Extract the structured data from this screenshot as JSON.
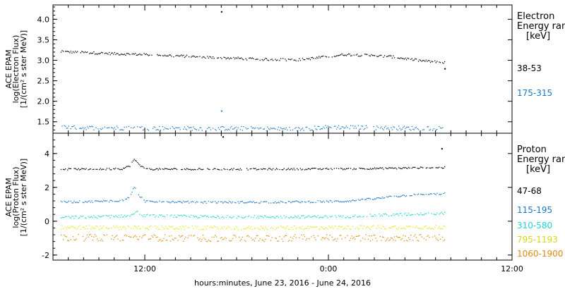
{
  "chart_data": [
    {
      "type": "scatter",
      "panel": "electron",
      "ylabel": [
        "ACE EPAM",
        "log(Electron Flux)",
        "[1/(cm² s ster MeV)]"
      ],
      "xlim": [
        6.0,
        36.0
      ],
      "ylim": [
        1.22,
        4.35
      ],
      "yticks": [
        1.5,
        2.0,
        2.5,
        3.0,
        3.5,
        4.0
      ],
      "ytick_labels": [
        "1.5",
        "2.0",
        "2.5",
        "3.0",
        "3.5",
        "4.0"
      ],
      "legend_title": [
        "Electron",
        "Energy range",
        "[keV]"
      ],
      "series": [
        {
          "name": "38-53",
          "color": "#000000",
          "x": [
            6.5,
            8,
            10,
            12,
            14,
            15,
            16,
            18,
            19,
            20,
            21,
            22,
            24,
            25,
            26,
            28,
            29,
            30,
            31,
            31.6
          ],
          "y": [
            3.22,
            3.2,
            3.17,
            3.15,
            3.12,
            3.1,
            3.08,
            3.06,
            3.04,
            3.03,
            3.03,
            3.02,
            3.1,
            3.15,
            3.14,
            3.1,
            3.05,
            3.0,
            2.97,
            2.95
          ],
          "noise": 0.03,
          "outliers": [
            [
              17.0,
              4.19
            ],
            [
              31.6,
              2.8
            ]
          ]
        },
        {
          "name": "175-315",
          "color": "#1a78c8",
          "x": [
            6.5,
            10,
            14,
            18,
            20,
            22,
            24,
            26,
            28,
            30,
            31.6
          ],
          "y": [
            1.37,
            1.36,
            1.35,
            1.35,
            1.34,
            1.33,
            1.38,
            1.37,
            1.36,
            1.35,
            1.36
          ],
          "noise": 0.05,
          "outliers": [
            [
              17.0,
              1.77
            ]
          ]
        }
      ]
    },
    {
      "type": "scatter",
      "panel": "proton",
      "ylabel": [
        "ACE EPAM",
        "log(Proton Flux)",
        "[1/(cm² s ster MeV)]"
      ],
      "xlabel": "hours:minutes, June 23, 2016 - June 24, 2016",
      "xlim": [
        6.0,
        36.0
      ],
      "ylim": [
        -2.3,
        5.2
      ],
      "yticks": [
        -2,
        0,
        2,
        4
      ],
      "ytick_labels": [
        "-2",
        "0",
        "2",
        "4"
      ],
      "xticks": [
        12,
        24,
        36
      ],
      "xtick_labels": [
        "12:00",
        "0:00",
        "12:00"
      ],
      "legend_title": [
        "Proton",
        "Energy range",
        "[keV]"
      ],
      "series": [
        {
          "name": "47-68",
          "color": "#000000",
          "x": [
            6.5,
            9,
            10.5,
            11,
            11.3,
            11.6,
            12,
            15,
            20,
            25,
            28,
            30,
            31.6
          ],
          "y": [
            3.1,
            3.1,
            3.12,
            3.3,
            3.7,
            3.35,
            3.1,
            3.1,
            3.1,
            3.12,
            3.15,
            3.18,
            3.2
          ],
          "noise": 0.05,
          "outliers": [
            [
              17.1,
              5.0
            ],
            [
              31.4,
              4.3
            ]
          ]
        },
        {
          "name": "115-195",
          "color": "#1a78c8",
          "x": [
            6.5,
            9,
            10.5,
            11,
            11.3,
            11.6,
            12,
            15,
            20,
            25,
            27,
            29,
            31.6
          ],
          "y": [
            1.15,
            1.2,
            1.25,
            1.5,
            2.05,
            1.55,
            1.2,
            1.15,
            1.15,
            1.2,
            1.35,
            1.55,
            1.65
          ],
          "noise": 0.06,
          "outliers": []
        },
        {
          "name": "310-580",
          "color": "#22d3d3",
          "x": [
            6.5,
            9,
            11,
            11.4,
            11.8,
            15,
            20,
            25,
            28,
            31.6
          ],
          "y": [
            0.25,
            0.28,
            0.35,
            0.6,
            0.35,
            0.3,
            0.28,
            0.3,
            0.4,
            0.5
          ],
          "noise": 0.08,
          "outliers": []
        },
        {
          "name": "795-1193",
          "color": "#e6e619",
          "x": [
            6.5,
            12,
            18,
            24,
            31.6
          ],
          "y": [
            -0.35,
            -0.35,
            -0.38,
            -0.35,
            -0.32
          ],
          "noise": 0.12,
          "outliers": []
        },
        {
          "name": "1060-1900",
          "color": "#e08a10",
          "x": [
            6.5,
            12,
            18,
            24,
            31.6
          ],
          "y": [
            -0.95,
            -0.95,
            -1.0,
            -0.95,
            -0.95
          ],
          "noise": 0.2,
          "outliers": []
        }
      ]
    }
  ]
}
